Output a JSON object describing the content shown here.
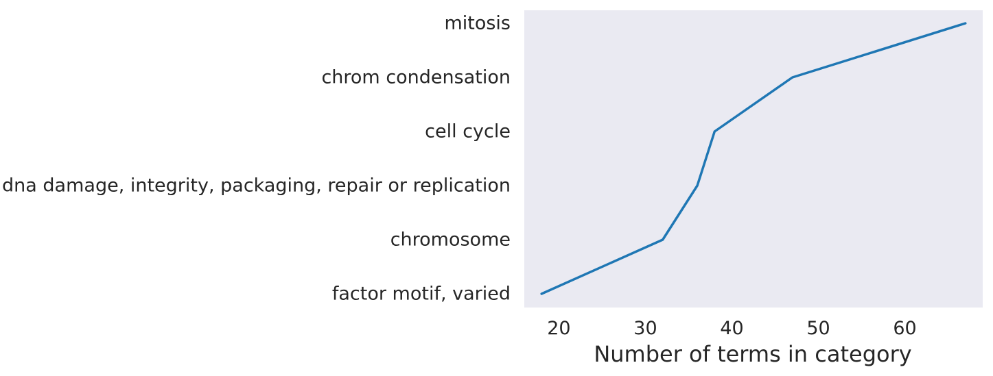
{
  "chart_data": {
    "type": "line",
    "title": "",
    "xlabel": "Number of terms in category",
    "ylabel": "",
    "xlim": [
      16,
      69
    ],
    "xticks": [
      20,
      30,
      40,
      50,
      60
    ],
    "categories": [
      "factor motif, varied",
      "chromosome",
      "dna damage, integrity, packaging, repair or replication",
      "cell cycle",
      "chrom condensation",
      "mitosis"
    ],
    "values": [
      18,
      32,
      36,
      38,
      47,
      67
    ],
    "grid": false,
    "legend": "none",
    "colors": {
      "line": "#1f77b4",
      "plot_background": "#eaeaf2",
      "text": "#262626"
    }
  }
}
